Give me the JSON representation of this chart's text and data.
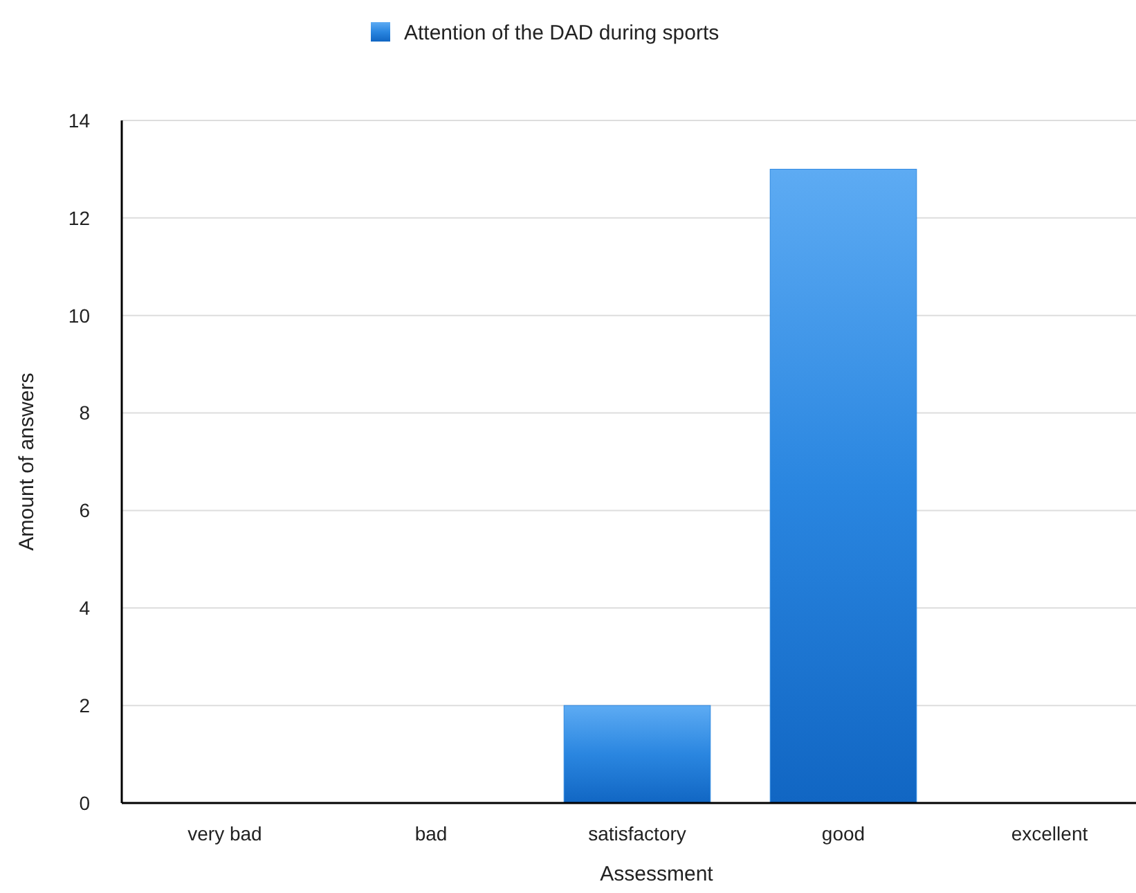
{
  "chart_data": {
    "type": "bar",
    "xlabel": "Assessment",
    "ylabel": "Amount of answers",
    "categories": [
      "very bad",
      "bad",
      "satisfactory",
      "good",
      "excellent"
    ],
    "series": [
      {
        "name": "Attention of the DAD during sports",
        "color": "#2a86e0",
        "values": [
          0,
          0,
          2,
          13,
          0
        ]
      }
    ],
    "ylim": [
      0,
      14
    ],
    "yticks": [
      0,
      2,
      4,
      6,
      8,
      10,
      12,
      14
    ],
    "grid": "y",
    "legend": "top"
  }
}
